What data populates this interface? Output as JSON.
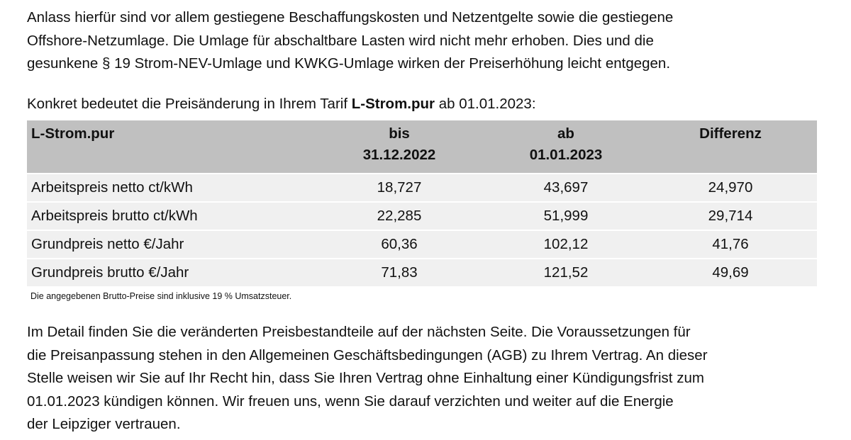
{
  "intro": {
    "lines": [
      "Anlass hierfür sind vor allem gestiegene Beschaffungskosten und Netzentgelte sowie die gestiegene",
      "Offshore-Netzumlage. Die Umlage für abschaltbare Lasten wird nicht mehr erhoben. Dies und die",
      "gesunkene § 19 Strom-NEV-Umlage und KWKG-Umlage wirken der Preiserhöhung leicht entgegen."
    ]
  },
  "lead": {
    "before": "Konkret bedeutet die Preisänderung in Ihrem Tarif",
    "tariff": "L-Strom.pur",
    "after": "ab 01.01.2023:"
  },
  "table": {
    "header": [
      [
        "L-Strom.pur"
      ],
      [
        "bis",
        "31.12.2022"
      ],
      [
        "ab",
        "01.01.2023"
      ],
      [
        "Differenz"
      ]
    ],
    "rows": [
      [
        "Arbeitspreis netto ct/kWh",
        "18,727",
        "43,697",
        "24,970"
      ],
      [
        "Arbeitspreis brutto ct/kWh",
        "22,285",
        "51,999",
        "29,714"
      ],
      [
        "Grundpreis netto €/Jahr",
        "60,36",
        "102,12",
        "41,76"
      ],
      [
        "Grundpreis brutto €/Jahr",
        "71,83",
        "121,52",
        "49,69"
      ]
    ]
  },
  "footnote": "Die angegebenen Brutto-Preise sind inklusive 19 % Umsatzsteuer.",
  "closing": {
    "lines": [
      "Im Detail finden Sie die veränderten Preisbestandteile auf der nächsten Seite. Die Voraussetzungen für",
      "die Preisanpassung stehen in den Allgemeinen Geschäftsbedingungen (AGB) zu Ihrem Vertrag. An dieser",
      "Stelle weisen wir Sie auf Ihr Recht hin, dass Sie Ihren Vertrag ohne Einhaltung einer Kündigungsfrist zum",
      "01.01.2023 kündigen können. Wir freuen uns, wenn Sie darauf verzichten und weiter auf die Energie",
      "der Leipziger vertrauen."
    ]
  }
}
